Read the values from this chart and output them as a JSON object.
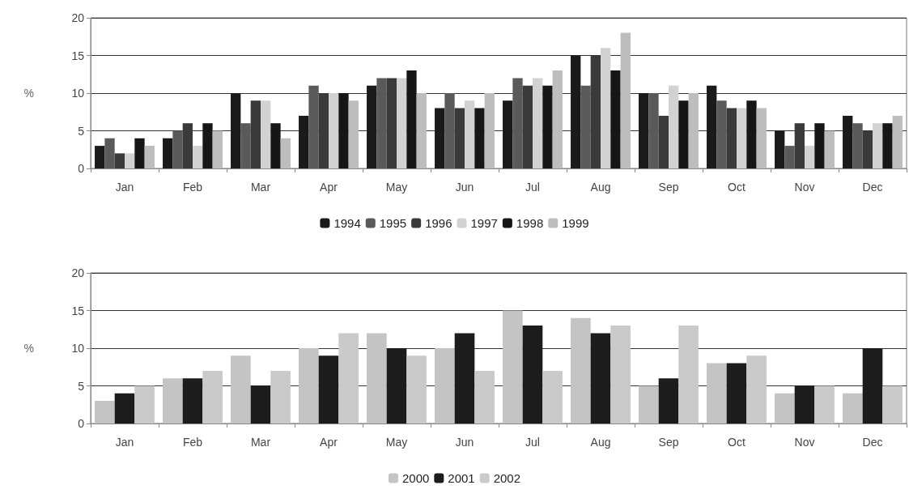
{
  "chart_data": [
    {
      "type": "bar",
      "ylabel": "%",
      "categories": [
        "Jan",
        "Feb",
        "Mar",
        "Apr",
        "May",
        "Jun",
        "Jul",
        "Aug",
        "Sep",
        "Oct",
        "Nov",
        "Dec"
      ],
      "series": [
        {
          "name": "1994",
          "color": "#1a1a1a",
          "values": [
            3,
            4,
            10,
            7,
            11,
            8,
            9,
            15,
            10,
            11,
            5,
            7
          ]
        },
        {
          "name": "1995",
          "color": "#5a5a5a",
          "values": [
            4,
            5,
            6,
            11,
            12,
            10,
            12,
            11,
            10,
            9,
            3,
            6
          ]
        },
        {
          "name": "1996",
          "color": "#3a3a3a",
          "values": [
            2,
            6,
            9,
            10,
            12,
            8,
            11,
            15,
            7,
            8,
            6,
            5
          ]
        },
        {
          "name": "1997",
          "color": "#d2d2d2",
          "values": [
            2,
            3,
            9,
            10,
            12,
            9,
            12,
            16,
            11,
            8,
            3,
            6
          ]
        },
        {
          "name": "1998",
          "color": "#161616",
          "values": [
            4,
            6,
            6,
            10,
            13,
            8,
            11,
            13,
            9,
            9,
            6,
            6
          ]
        },
        {
          "name": "1999",
          "color": "#bdbdbd",
          "values": [
            3,
            5,
            4,
            9,
            10,
            10,
            13,
            18,
            10,
            8,
            5,
            7
          ]
        }
      ],
      "ylim": [
        0,
        20
      ],
      "yticks": [
        0,
        5,
        10,
        15,
        20
      ],
      "grid": "y",
      "legend": "bottom"
    },
    {
      "type": "bar",
      "ylabel": "%",
      "categories": [
        "Jan",
        "Feb",
        "Mar",
        "Apr",
        "May",
        "Jun",
        "Jul",
        "Aug",
        "Sep",
        "Oct",
        "Nov",
        "Dec"
      ],
      "series": [
        {
          "name": "2000",
          "color": "#c4c4c4",
          "values": [
            3,
            6,
            9,
            10,
            12,
            10,
            15,
            14,
            5,
            8,
            4,
            4
          ]
        },
        {
          "name": "2001",
          "color": "#1c1c1c",
          "values": [
            4,
            6,
            5,
            9,
            10,
            12,
            13,
            12,
            6,
            8,
            5,
            10
          ]
        },
        {
          "name": "2002",
          "color": "#cacaca",
          "values": [
            5,
            7,
            7,
            12,
            9,
            7,
            7,
            13,
            13,
            9,
            5,
            5
          ]
        }
      ],
      "ylim": [
        0,
        20
      ],
      "yticks": [
        0,
        5,
        10,
        15,
        20
      ],
      "grid": "y",
      "legend": "bottom"
    }
  ]
}
